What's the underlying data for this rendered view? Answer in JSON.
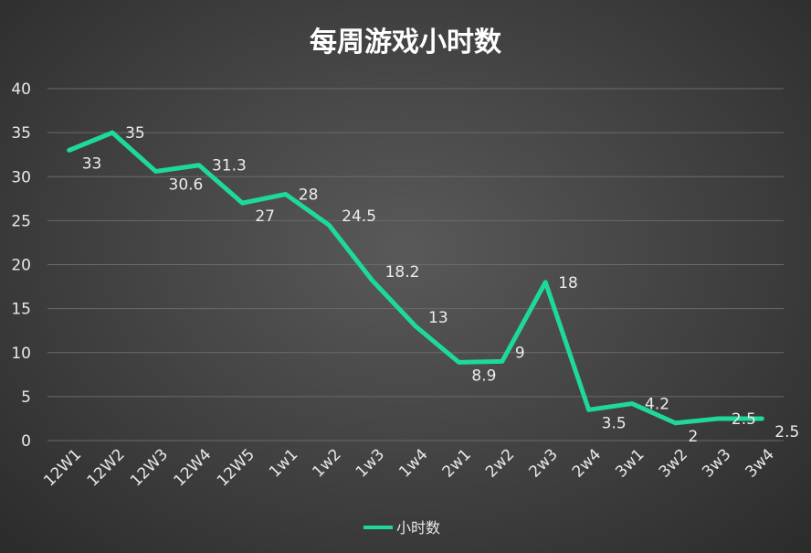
{
  "chart_data": {
    "type": "line",
    "title": "每周游戏小时数",
    "xlabel": "",
    "ylabel": "",
    "categories": [
      "12W1",
      "12W2",
      "12W3",
      "12W4",
      "12W5",
      "1w1",
      "1w2",
      "1w3",
      "1w4",
      "2w1",
      "2w2",
      "2w3",
      "2w4",
      "3w1",
      "3w2",
      "3w3",
      "3w4"
    ],
    "series": [
      {
        "name": "小时数",
        "values": [
          33,
          35,
          30.6,
          31.3,
          27,
          28,
          24.5,
          18.2,
          13,
          8.9,
          9,
          18,
          3.5,
          4.2,
          2,
          2.5,
          2.5
        ]
      }
    ],
    "ylim": [
      0,
      40
    ],
    "yticks": [
      0,
      5,
      10,
      15,
      20,
      25,
      30,
      35,
      40
    ],
    "grid": true,
    "legend": "bottom",
    "colors": {
      "line": "#1ed99b",
      "grid": "#6a6a6a",
      "text": "#e8e8e8"
    }
  }
}
